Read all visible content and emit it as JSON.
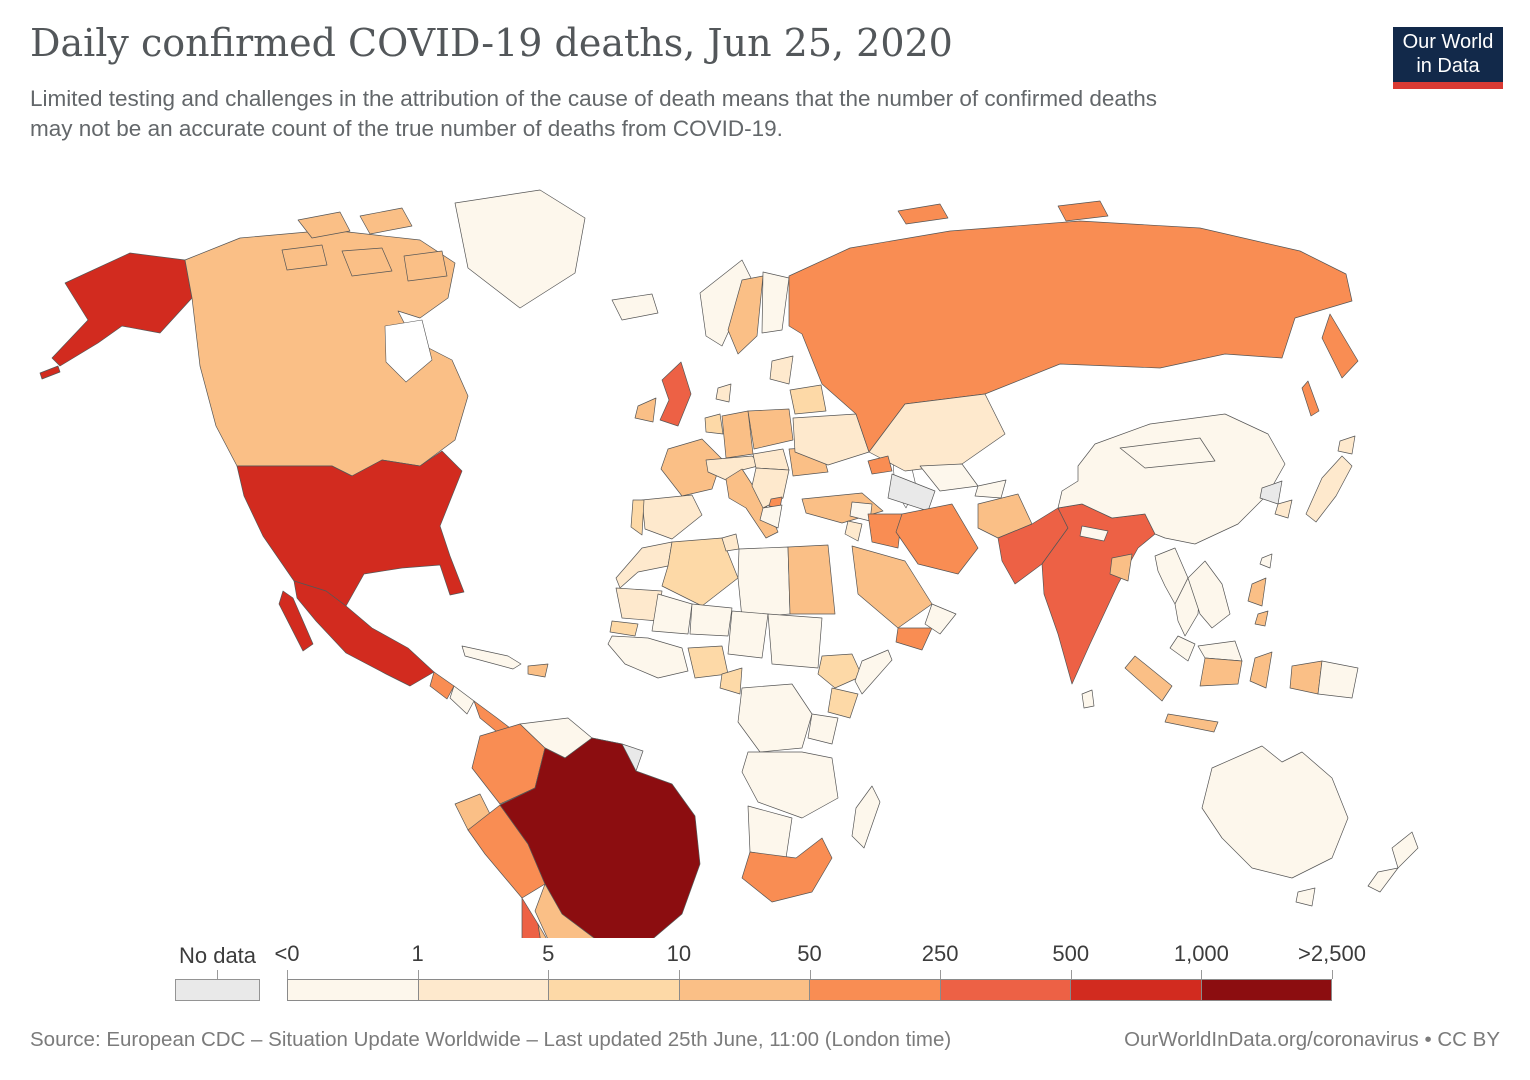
{
  "header": {
    "title": "Daily confirmed COVID-19 deaths, Jun 25, 2020",
    "subtitle_line1": "Limited testing and challenges in the attribution of the cause of death means that the number of confirmed deaths",
    "subtitle_line2": "may not be an accurate count of the true number of deaths from COVID-19."
  },
  "logo": {
    "line1": "Our World",
    "line2": "in Data",
    "bg_color": "#12294a",
    "accent_color": "#d93a34"
  },
  "chart_data": {
    "type": "choropleth_map",
    "title": "Daily confirmed COVID-19 deaths",
    "date": "Jun 25, 2020",
    "metric": "daily confirmed COVID-19 deaths",
    "legend": {
      "no_data_label": "No data",
      "no_data_color": "#e9e9e9",
      "tick_labels": [
        "<0",
        "1",
        "5",
        "10",
        "50",
        "250",
        "500",
        "1,000",
        ">2,500"
      ],
      "colors": [
        "#fdf7ec",
        "#fee9cd",
        "#fdd9a7",
        "#fabf86",
        "#f98d53",
        "#ed6145",
        "#d22b1f",
        "#8c0d10"
      ],
      "bucket_ranges": [
        "<0 to 1",
        "1 to 5",
        "5 to 10",
        "10 to 50",
        "50 to 250",
        "250 to 500",
        "500 to 1,000",
        "1,000 to >2,500"
      ]
    },
    "countries": {
      "greenland": 0,
      "canada": 3,
      "united-states": 6,
      "mexico": 6,
      "guatemala": 4,
      "nicaragua": 0,
      "panama": 4,
      "cuba": 0,
      "hispaniola": 3,
      "colombia": 4,
      "venezuela": 0,
      "guyana": 0,
      "french-guiana": "nodata",
      "ecuador": 3,
      "peru": 4,
      "brazil": 7,
      "bolivia": 3,
      "paraguay": 0,
      "chile": 5,
      "argentina": 3,
      "uruguay": 0,
      "iceland": 0,
      "ireland": 3,
      "united-kingdom": 5,
      "norway": 0,
      "sweden": 3,
      "finland": 0,
      "denmark": 1,
      "baltics": 1,
      "germany": 3,
      "benelux": 2,
      "poland": 3,
      "france": 3,
      "spain": 1,
      "portugal": 2,
      "italy": 3,
      "alpine": 1,
      "central-europe": 1,
      "balkans": 1,
      "north-macedonia": 4,
      "greece": 0,
      "romania": 3,
      "ukraine": 1,
      "belarus": 2,
      "turkey": 3,
      "russia": 4,
      "kazakhstan": 1,
      "uzbekistan": 0,
      "turkmenistan": "nodata",
      "kyrgyzstan": 0,
      "caucasus": 4,
      "syria": 0,
      "jordan-israel": 1,
      "iraq": 4,
      "iran": 4,
      "saudi-arabia": 3,
      "yemen": 4,
      "oman": 0,
      "afghanistan": 3,
      "pakistan": 5,
      "india": 5,
      "nepal": 0,
      "bangladesh": 3,
      "sri-lanka": 0,
      "china": 0,
      "mongolia": 0,
      "north-korea": "nodata",
      "south-korea": 1,
      "japan": 1,
      "taiwan": 0,
      "myanmar": 0,
      "thailand": 0,
      "indochina": 0,
      "malaysia": 0,
      "philippines": 3,
      "indonesia": 3,
      "borneo-malaysia": 0,
      "papua-new-guinea": 0,
      "morocco": 1,
      "algeria": 2,
      "tunisia": 1,
      "libya": 0,
      "egypt": 3,
      "mauritania": 1,
      "mali": 0,
      "niger": 0,
      "chad": 0,
      "sudan": 0,
      "senegal": 2,
      "west-africa": 0,
      "nigeria": 2,
      "cameroon": 2,
      "ethiopia": 2,
      "somalia": 0,
      "kenya": 2,
      "central-africa": 0,
      "tanzania": 0,
      "southern-africa": 0,
      "namibia-botswana": 0,
      "south-africa": 4,
      "madagascar": 0,
      "australia": 0,
      "tasmania": 0,
      "new-zealand": 0
    }
  },
  "footer": {
    "source": "Source: European CDC – Situation Update Worldwide – Last updated 25th June, 11:00 (London time)",
    "attribution": "OurWorldInData.org/coronavirus • CC BY"
  }
}
